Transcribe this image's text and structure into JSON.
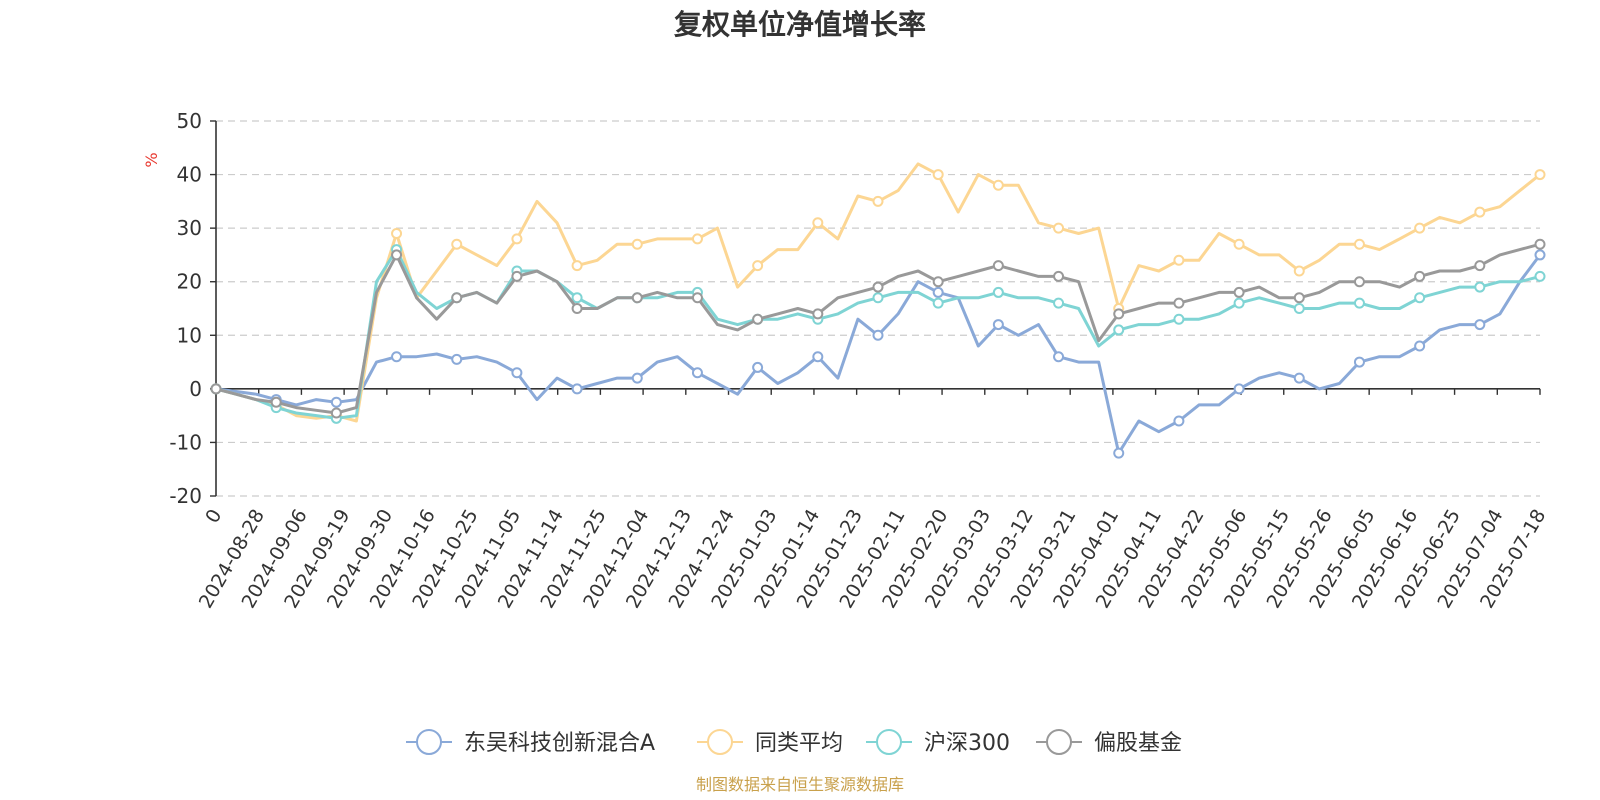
{
  "chart_data": {
    "type": "line",
    "title": "复权单位净值增长率",
    "ylabel": "%",
    "ylim": [
      -20,
      50
    ],
    "yticks": [
      -20,
      -10,
      0,
      10,
      20,
      30,
      40,
      50
    ],
    "grid": true,
    "legend_position": "bottom",
    "source": "制图数据来自恒生聚源数据库",
    "xtick_labels": [
      "0",
      "2024-08-28",
      "2024-09-06",
      "2024-09-19",
      "2024-09-30",
      "2024-10-16",
      "2024-10-25",
      "2024-11-05",
      "2024-11-14",
      "2024-11-25",
      "2024-12-04",
      "2024-12-13",
      "2024-12-24",
      "2025-01-03",
      "2025-01-14",
      "2025-01-23",
      "2025-02-11",
      "2025-02-20",
      "2025-03-03",
      "2025-03-12",
      "2025-03-21",
      "2025-04-01",
      "2025-04-11",
      "2025-04-22",
      "2025-05-06",
      "2025-05-15",
      "2025-05-26",
      "2025-06-05",
      "2025-06-16",
      "2025-06-25",
      "2025-07-04",
      "2025-07-18"
    ],
    "series": [
      {
        "name": "东吴科技创新混合A",
        "color": "#8aa9d8",
        "points": [
          [
            0,
            0
          ],
          [
            1,
            -0.5
          ],
          [
            2,
            -1
          ],
          [
            3,
            -2
          ],
          [
            4,
            -3
          ],
          [
            5,
            -2
          ],
          [
            6,
            -2.5
          ],
          [
            7,
            -2
          ],
          [
            8,
            5
          ],
          [
            9,
            6
          ],
          [
            10,
            6
          ],
          [
            11,
            6.5
          ],
          [
            12,
            5.5
          ],
          [
            13,
            6
          ],
          [
            14,
            5
          ],
          [
            15,
            3
          ],
          [
            16,
            -2
          ],
          [
            17,
            2
          ],
          [
            18,
            0
          ],
          [
            19,
            1
          ],
          [
            20,
            2
          ],
          [
            21,
            2
          ],
          [
            22,
            5
          ],
          [
            23,
            6
          ],
          [
            24,
            3
          ],
          [
            25,
            1
          ],
          [
            26,
            -1
          ],
          [
            27,
            4
          ],
          [
            28,
            1
          ],
          [
            29,
            3
          ],
          [
            30,
            6
          ],
          [
            31,
            2
          ],
          [
            32,
            13
          ],
          [
            33,
            10
          ],
          [
            34,
            14
          ],
          [
            35,
            20
          ],
          [
            36,
            18
          ],
          [
            37,
            17
          ],
          [
            38,
            8
          ],
          [
            39,
            12
          ],
          [
            40,
            10
          ],
          [
            41,
            12
          ],
          [
            42,
            6
          ],
          [
            43,
            5
          ],
          [
            44,
            5
          ],
          [
            45,
            -12
          ],
          [
            46,
            -6
          ],
          [
            47,
            -8
          ],
          [
            48,
            -6
          ],
          [
            49,
            -3
          ],
          [
            50,
            -3
          ],
          [
            51,
            0
          ],
          [
            52,
            2
          ],
          [
            53,
            3
          ],
          [
            54,
            2
          ],
          [
            55,
            0
          ],
          [
            56,
            1
          ],
          [
            57,
            5
          ],
          [
            58,
            6
          ],
          [
            59,
            6
          ],
          [
            60,
            8
          ],
          [
            61,
            11
          ],
          [
            62,
            12
          ],
          [
            63,
            12
          ],
          [
            64,
            14
          ],
          [
            65,
            20
          ],
          [
            66,
            25
          ]
        ]
      },
      {
        "name": "同类平均",
        "color": "#fcd693",
        "points": [
          [
            0,
            0
          ],
          [
            1,
            -1
          ],
          [
            2,
            -2
          ],
          [
            3,
            -3
          ],
          [
            4,
            -5
          ],
          [
            5,
            -5.5
          ],
          [
            6,
            -5
          ],
          [
            7,
            -6
          ],
          [
            8,
            17
          ],
          [
            9,
            29
          ],
          [
            10,
            17
          ],
          [
            11,
            22
          ],
          [
            12,
            27
          ],
          [
            13,
            25
          ],
          [
            14,
            23
          ],
          [
            15,
            28
          ],
          [
            16,
            35
          ],
          [
            17,
            31
          ],
          [
            18,
            23
          ],
          [
            19,
            24
          ],
          [
            20,
            27
          ],
          [
            21,
            27
          ],
          [
            22,
            28
          ],
          [
            23,
            28
          ],
          [
            24,
            28
          ],
          [
            25,
            30
          ],
          [
            26,
            19
          ],
          [
            27,
            23
          ],
          [
            28,
            26
          ],
          [
            29,
            26
          ],
          [
            30,
            31
          ],
          [
            31,
            28
          ],
          [
            32,
            36
          ],
          [
            33,
            35
          ],
          [
            34,
            37
          ],
          [
            35,
            42
          ],
          [
            36,
            40
          ],
          [
            37,
            33
          ],
          [
            38,
            40
          ],
          [
            39,
            38
          ],
          [
            40,
            38
          ],
          [
            41,
            31
          ],
          [
            42,
            30
          ],
          [
            43,
            29
          ],
          [
            44,
            30
          ],
          [
            45,
            15
          ],
          [
            46,
            23
          ],
          [
            47,
            22
          ],
          [
            48,
            24
          ],
          [
            49,
            24
          ],
          [
            50,
            29
          ],
          [
            51,
            27
          ],
          [
            52,
            25
          ],
          [
            53,
            25
          ],
          [
            54,
            22
          ],
          [
            55,
            24
          ],
          [
            56,
            27
          ],
          [
            57,
            27
          ],
          [
            58,
            26
          ],
          [
            59,
            28
          ],
          [
            60,
            30
          ],
          [
            61,
            32
          ],
          [
            62,
            31
          ],
          [
            63,
            33
          ],
          [
            64,
            34
          ],
          [
            65,
            37
          ],
          [
            66,
            40
          ]
        ]
      },
      {
        "name": "沪深300",
        "color": "#7fd4d4",
        "points": [
          [
            0,
            0
          ],
          [
            1,
            -1
          ],
          [
            2,
            -2
          ],
          [
            3,
            -3.5
          ],
          [
            4,
            -4.5
          ],
          [
            5,
            -5
          ],
          [
            6,
            -5.5
          ],
          [
            7,
            -5
          ],
          [
            8,
            20
          ],
          [
            9,
            26
          ],
          [
            10,
            18
          ],
          [
            11,
            15
          ],
          [
            12,
            17
          ],
          [
            13,
            18
          ],
          [
            14,
            16
          ],
          [
            15,
            22
          ],
          [
            16,
            22
          ],
          [
            17,
            20
          ],
          [
            18,
            17
          ],
          [
            19,
            15
          ],
          [
            20,
            17
          ],
          [
            21,
            17
          ],
          [
            22,
            17
          ],
          [
            23,
            18
          ],
          [
            24,
            18
          ],
          [
            25,
            13
          ],
          [
            26,
            12
          ],
          [
            27,
            13
          ],
          [
            28,
            13
          ],
          [
            29,
            14
          ],
          [
            30,
            13
          ],
          [
            31,
            14
          ],
          [
            32,
            16
          ],
          [
            33,
            17
          ],
          [
            34,
            18
          ],
          [
            35,
            18
          ],
          [
            36,
            16
          ],
          [
            37,
            17
          ],
          [
            38,
            17
          ],
          [
            39,
            18
          ],
          [
            40,
            17
          ],
          [
            41,
            17
          ],
          [
            42,
            16
          ],
          [
            43,
            15
          ],
          [
            44,
            8
          ],
          [
            45,
            11
          ],
          [
            46,
            12
          ],
          [
            47,
            12
          ],
          [
            48,
            13
          ],
          [
            49,
            13
          ],
          [
            50,
            14
          ],
          [
            51,
            16
          ],
          [
            52,
            17
          ],
          [
            53,
            16
          ],
          [
            54,
            15
          ],
          [
            55,
            15
          ],
          [
            56,
            16
          ],
          [
            57,
            16
          ],
          [
            58,
            15
          ],
          [
            59,
            15
          ],
          [
            60,
            17
          ],
          [
            61,
            18
          ],
          [
            62,
            19
          ],
          [
            63,
            19
          ],
          [
            64,
            20
          ],
          [
            65,
            20
          ],
          [
            66,
            21
          ]
        ]
      },
      {
        "name": "偏股基金",
        "color": "#999999",
        "points": [
          [
            0,
            0
          ],
          [
            1,
            -1
          ],
          [
            2,
            -2
          ],
          [
            3,
            -2.5
          ],
          [
            4,
            -3.5
          ],
          [
            5,
            -4
          ],
          [
            6,
            -4.5
          ],
          [
            7,
            -3.5
          ],
          [
            8,
            18
          ],
          [
            9,
            25
          ],
          [
            10,
            17
          ],
          [
            11,
            13
          ],
          [
            12,
            17
          ],
          [
            13,
            18
          ],
          [
            14,
            16
          ],
          [
            15,
            21
          ],
          [
            16,
            22
          ],
          [
            17,
            20
          ],
          [
            18,
            15
          ],
          [
            19,
            15
          ],
          [
            20,
            17
          ],
          [
            21,
            17
          ],
          [
            22,
            18
          ],
          [
            23,
            17
          ],
          [
            24,
            17
          ],
          [
            25,
            12
          ],
          [
            26,
            11
          ],
          [
            27,
            13
          ],
          [
            28,
            14
          ],
          [
            29,
            15
          ],
          [
            30,
            14
          ],
          [
            31,
            17
          ],
          [
            32,
            18
          ],
          [
            33,
            19
          ],
          [
            34,
            21
          ],
          [
            35,
            22
          ],
          [
            36,
            20
          ],
          [
            37,
            21
          ],
          [
            38,
            22
          ],
          [
            39,
            23
          ],
          [
            40,
            22
          ],
          [
            41,
            21
          ],
          [
            42,
            21
          ],
          [
            43,
            20
          ],
          [
            44,
            9
          ],
          [
            45,
            14
          ],
          [
            46,
            15
          ],
          [
            47,
            16
          ],
          [
            48,
            16
          ],
          [
            49,
            17
          ],
          [
            50,
            18
          ],
          [
            51,
            18
          ],
          [
            52,
            19
          ],
          [
            53,
            17
          ],
          [
            54,
            17
          ],
          [
            55,
            18
          ],
          [
            56,
            20
          ],
          [
            57,
            20
          ],
          [
            58,
            20
          ],
          [
            59,
            19
          ],
          [
            60,
            21
          ],
          [
            61,
            22
          ],
          [
            62,
            22
          ],
          [
            63,
            23
          ],
          [
            64,
            25
          ],
          [
            65,
            26
          ],
          [
            66,
            27
          ]
        ]
      }
    ]
  }
}
